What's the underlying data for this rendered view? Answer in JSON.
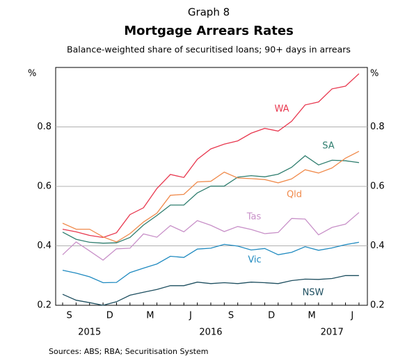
{
  "chart_data": {
    "type": "line",
    "supertitle": "Graph 8",
    "title": "Mortgage Arrears Rates",
    "subtitle": "Balance-weighted share of securitised loans; 90+ days in arrears",
    "y_unit": "%",
    "month_labels": [
      "S",
      "D",
      "M",
      "J",
      "S",
      "D",
      "M",
      "J"
    ],
    "year_labels": [
      "2015",
      "2016",
      "2017"
    ],
    "source": "Sources:   ABS; RBA; Securitisation System",
    "ylim": [
      0.2,
      1.0
    ],
    "yticks": [
      0.2,
      0.4,
      0.6,
      0.8
    ],
    "grid": true,
    "series": [
      {
        "name": "WA",
        "color": "#e8384f",
        "values": [
          0.456,
          0.447,
          0.435,
          0.428,
          0.444,
          0.505,
          0.528,
          0.593,
          0.64,
          0.63,
          0.691,
          0.726,
          0.742,
          0.753,
          0.779,
          0.795,
          0.786,
          0.819,
          0.874,
          0.884,
          0.928,
          0.937,
          0.979
        ]
      },
      {
        "name": "SA",
        "color": "#2e7d6e",
        "values": [
          0.446,
          0.422,
          0.412,
          0.409,
          0.41,
          0.428,
          0.47,
          0.502,
          0.537,
          0.537,
          0.578,
          0.601,
          0.601,
          0.631,
          0.636,
          0.632,
          0.641,
          0.664,
          0.703,
          0.672,
          0.688,
          0.686,
          0.68
        ]
      },
      {
        "name": "Qld",
        "color": "#f08a4b",
        "values": [
          0.476,
          0.456,
          0.456,
          0.43,
          0.413,
          0.441,
          0.48,
          0.51,
          0.57,
          0.573,
          0.615,
          0.617,
          0.648,
          0.628,
          0.626,
          0.623,
          0.612,
          0.625,
          0.656,
          0.645,
          0.662,
          0.695,
          0.718
        ]
      },
      {
        "name": "Tas",
        "color": "#c890c8",
        "values": [
          0.37,
          0.413,
          0.383,
          0.352,
          0.39,
          0.392,
          0.44,
          0.429,
          0.468,
          0.447,
          0.485,
          0.469,
          0.448,
          0.465,
          0.455,
          0.441,
          0.445,
          0.492,
          0.49,
          0.437,
          0.462,
          0.473,
          0.512
        ]
      },
      {
        "name": "Vic",
        "color": "#1f8ac0",
        "values": [
          0.318,
          0.308,
          0.296,
          0.276,
          0.277,
          0.31,
          0.325,
          0.339,
          0.365,
          0.361,
          0.389,
          0.392,
          0.405,
          0.399,
          0.386,
          0.391,
          0.37,
          0.378,
          0.397,
          0.385,
          0.393,
          0.404,
          0.412
        ]
      },
      {
        "name": "NSW",
        "color": "#1d4e5f",
        "values": [
          0.237,
          0.217,
          0.209,
          0.2,
          0.212,
          0.234,
          0.244,
          0.253,
          0.266,
          0.266,
          0.278,
          0.273,
          0.276,
          0.273,
          0.278,
          0.276,
          0.273,
          0.283,
          0.288,
          0.287,
          0.29,
          0.3,
          0.3
        ]
      }
    ]
  }
}
